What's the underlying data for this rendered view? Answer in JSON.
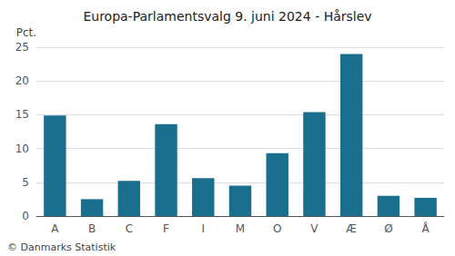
{
  "chart_data": {
    "type": "bar",
    "title": "Europa-Parlamentsvalg 9. juni 2024 - Hårslev",
    "ylabel": "Pct.",
    "annotations": [
      "© Danmarks Statistik"
    ],
    "categories": [
      "A",
      "B",
      "C",
      "F",
      "I",
      "M",
      "O",
      "V",
      "Æ",
      "Ø",
      "Å"
    ],
    "values": [
      14.9,
      2.5,
      5.2,
      13.6,
      5.6,
      4.5,
      9.3,
      15.4,
      24.0,
      3.0,
      2.7
    ],
    "color": "#1a6e8e",
    "ylim": [
      0,
      25
    ],
    "yticks": [
      0,
      5,
      10,
      15,
      20,
      25
    ],
    "grid": true
  }
}
